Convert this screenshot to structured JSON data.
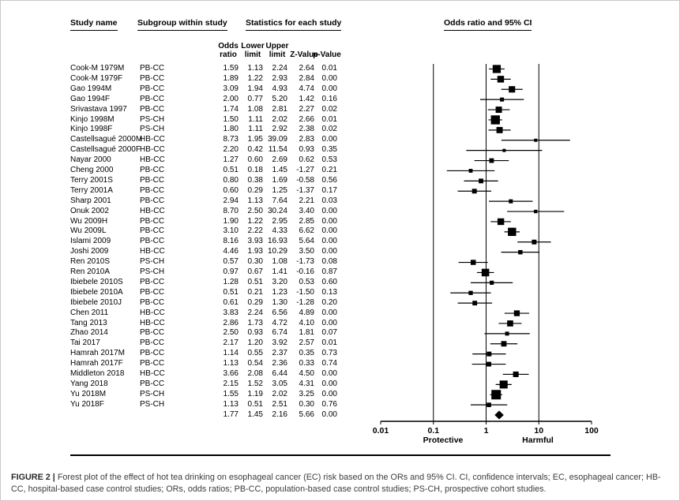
{
  "figure": {
    "headers": {
      "study_name": "Study name",
      "subgroup": "Subgroup within study",
      "statistics": "Statistics for each study",
      "plot": "Odds ratio and 95% CI"
    },
    "stat_columns": [
      "Odds\nratio",
      "Lower\nlimit",
      "Upper\nlimit",
      "Z-Value",
      "p-Value"
    ]
  },
  "colors": {
    "marker": "#000000",
    "axis": "#000000",
    "caption_text": "#3c3c3c",
    "page_border": "#c9c9c9"
  },
  "chart_data": {
    "type": "forest",
    "title": "Odds ratio and 95% CI",
    "x_scale": "log",
    "x_range": [
      0.01,
      100
    ],
    "x_ticks": [
      0.01,
      0.1,
      1,
      10,
      100
    ],
    "x_tick_labels": [
      "0.01",
      "0.1",
      "1",
      "10",
      "100"
    ],
    "gridlines": [
      0.1,
      1,
      10
    ],
    "axis_annotations": {
      "left": "Protective",
      "right": "Harmful"
    },
    "studies": [
      {
        "name": "Cook-M 1979M",
        "subgroup": "PB-CC",
        "or": 1.59,
        "lower": 1.13,
        "upper": 2.24,
        "z": 2.64,
        "p": 0.01
      },
      {
        "name": "Cook-M 1979F",
        "subgroup": "PB-CC",
        "or": 1.89,
        "lower": 1.22,
        "upper": 2.93,
        "z": 2.84,
        "p": 0.0
      },
      {
        "name": "Gao 1994M",
        "subgroup": "PB-CC",
        "or": 3.09,
        "lower": 1.94,
        "upper": 4.93,
        "z": 4.74,
        "p": 0.0
      },
      {
        "name": "Gao 1994F",
        "subgroup": "PB-CC",
        "or": 2.0,
        "lower": 0.77,
        "upper": 5.2,
        "z": 1.42,
        "p": 0.16
      },
      {
        "name": "Srivastava 1997",
        "subgroup": "PB-CC",
        "or": 1.74,
        "lower": 1.08,
        "upper": 2.81,
        "z": 2.27,
        "p": 0.02
      },
      {
        "name": "Kinjo 1998M",
        "subgroup": "PS-CH",
        "or": 1.5,
        "lower": 1.11,
        "upper": 2.02,
        "z": 2.66,
        "p": 0.01
      },
      {
        "name": "Kinjo 1998F",
        "subgroup": "PS-CH",
        "or": 1.8,
        "lower": 1.11,
        "upper": 2.92,
        "z": 2.38,
        "p": 0.02
      },
      {
        "name": "Castellsagué 2000M",
        "subgroup": "HB-CC",
        "or": 8.73,
        "lower": 1.95,
        "upper": 39.09,
        "z": 2.83,
        "p": 0.0
      },
      {
        "name": "Castellsagué 2000F",
        "subgroup": "HB-CC",
        "or": 2.2,
        "lower": 0.42,
        "upper": 11.54,
        "z": 0.93,
        "p": 0.35
      },
      {
        "name": "Nayar 2000",
        "subgroup": "HB-CC",
        "or": 1.27,
        "lower": 0.6,
        "upper": 2.69,
        "z": 0.62,
        "p": 0.53
      },
      {
        "name": "Cheng 2000",
        "subgroup": "PB-CC",
        "or": 0.51,
        "lower": 0.18,
        "upper": 1.45,
        "z": -1.27,
        "p": 0.21
      },
      {
        "name": "Terry 2001S",
        "subgroup": "PB-CC",
        "or": 0.8,
        "lower": 0.38,
        "upper": 1.69,
        "z": -0.58,
        "p": 0.56
      },
      {
        "name": "Terry 2001A",
        "subgroup": "PB-CC",
        "or": 0.6,
        "lower": 0.29,
        "upper": 1.25,
        "z": -1.37,
        "p": 0.17
      },
      {
        "name": "Sharp 2001",
        "subgroup": "PB-CC",
        "or": 2.94,
        "lower": 1.13,
        "upper": 7.64,
        "z": 2.21,
        "p": 0.03
      },
      {
        "name": "Onuk 2002",
        "subgroup": "HB-CC",
        "or": 8.7,
        "lower": 2.5,
        "upper": 30.24,
        "z": 3.4,
        "p": 0.0
      },
      {
        "name": "Wu 2009H",
        "subgroup": "PB-CC",
        "or": 1.9,
        "lower": 1.22,
        "upper": 2.95,
        "z": 2.85,
        "p": 0.0
      },
      {
        "name": "Wu 2009L",
        "subgroup": "PB-CC",
        "or": 3.1,
        "lower": 2.22,
        "upper": 4.33,
        "z": 6.62,
        "p": 0.0
      },
      {
        "name": "Islami 2009",
        "subgroup": "PB-CC",
        "or": 8.16,
        "lower": 3.93,
        "upper": 16.93,
        "z": 5.64,
        "p": 0.0
      },
      {
        "name": "Joshi 2009",
        "subgroup": "HB-CC",
        "or": 4.46,
        "lower": 1.93,
        "upper": 10.29,
        "z": 3.5,
        "p": 0.0
      },
      {
        "name": "Ren 2010S",
        "subgroup": "PS-CH",
        "or": 0.57,
        "lower": 0.3,
        "upper": 1.08,
        "z": -1.73,
        "p": 0.08
      },
      {
        "name": "Ren 2010A",
        "subgroup": "PS-CH",
        "or": 0.97,
        "lower": 0.67,
        "upper": 1.41,
        "z": -0.16,
        "p": 0.87
      },
      {
        "name": "Ibiebele 2010S",
        "subgroup": "PB-CC",
        "or": 1.28,
        "lower": 0.51,
        "upper": 3.2,
        "z": 0.53,
        "p": 0.6
      },
      {
        "name": "Ibiebele 2010A",
        "subgroup": "PB-CC",
        "or": 0.51,
        "lower": 0.21,
        "upper": 1.23,
        "z": -1.5,
        "p": 0.13
      },
      {
        "name": "Ibiebele 2010J",
        "subgroup": "PB-CC",
        "or": 0.61,
        "lower": 0.29,
        "upper": 1.3,
        "z": -1.28,
        "p": 0.2
      },
      {
        "name": "Chen 2011",
        "subgroup": "HB-CC",
        "or": 3.83,
        "lower": 2.24,
        "upper": 6.56,
        "z": 4.89,
        "p": 0.0
      },
      {
        "name": "Tang 2013",
        "subgroup": "HB-CC",
        "or": 2.86,
        "lower": 1.73,
        "upper": 4.72,
        "z": 4.1,
        "p": 0.0
      },
      {
        "name": "Zhao 2014",
        "subgroup": "PB-CC",
        "or": 2.5,
        "lower": 0.93,
        "upper": 6.74,
        "z": 1.81,
        "p": 0.07
      },
      {
        "name": "Tai 2017",
        "subgroup": "PB-CC",
        "or": 2.17,
        "lower": 1.2,
        "upper": 3.92,
        "z": 2.57,
        "p": 0.01
      },
      {
        "name": "Hamrah 2017M",
        "subgroup": "PB-CC",
        "or": 1.14,
        "lower": 0.55,
        "upper": 2.37,
        "z": 0.35,
        "p": 0.73
      },
      {
        "name": "Hamrah 2017F",
        "subgroup": "PB-CC",
        "or": 1.13,
        "lower": 0.54,
        "upper": 2.36,
        "z": 0.33,
        "p": 0.74
      },
      {
        "name": "Middleton 2018",
        "subgroup": "HB-CC",
        "or": 3.66,
        "lower": 2.08,
        "upper": 6.44,
        "z": 4.5,
        "p": 0.0
      },
      {
        "name": "Yang 2018",
        "subgroup": "PB-CC",
        "or": 2.15,
        "lower": 1.52,
        "upper": 3.05,
        "z": 4.31,
        "p": 0.0
      },
      {
        "name": "Yu 2018M",
        "subgroup": "PS-CH",
        "or": 1.55,
        "lower": 1.19,
        "upper": 2.02,
        "z": 3.25,
        "p": 0.0
      },
      {
        "name": "Yu 2018F",
        "subgroup": "PS-CH",
        "or": 1.13,
        "lower": 0.51,
        "upper": 2.51,
        "z": 0.3,
        "p": 0.76
      }
    ],
    "summary": {
      "or": 1.77,
      "lower": 1.45,
      "upper": 2.16,
      "z": 5.66,
      "p": 0.0
    }
  },
  "caption": {
    "label": "FIGURE 2",
    "separator": "|",
    "text": "Forest plot of the effect of hot tea drinking on esophageal cancer (EC) risk based on the ORs and 95% CI. CI, confidence intervals; EC, esophageal cancer; HB-CC, hospital-based case control studies; ORs, odds ratios; PB-CC, population-based case control studies; PS-CH, prospective cohort studies."
  }
}
